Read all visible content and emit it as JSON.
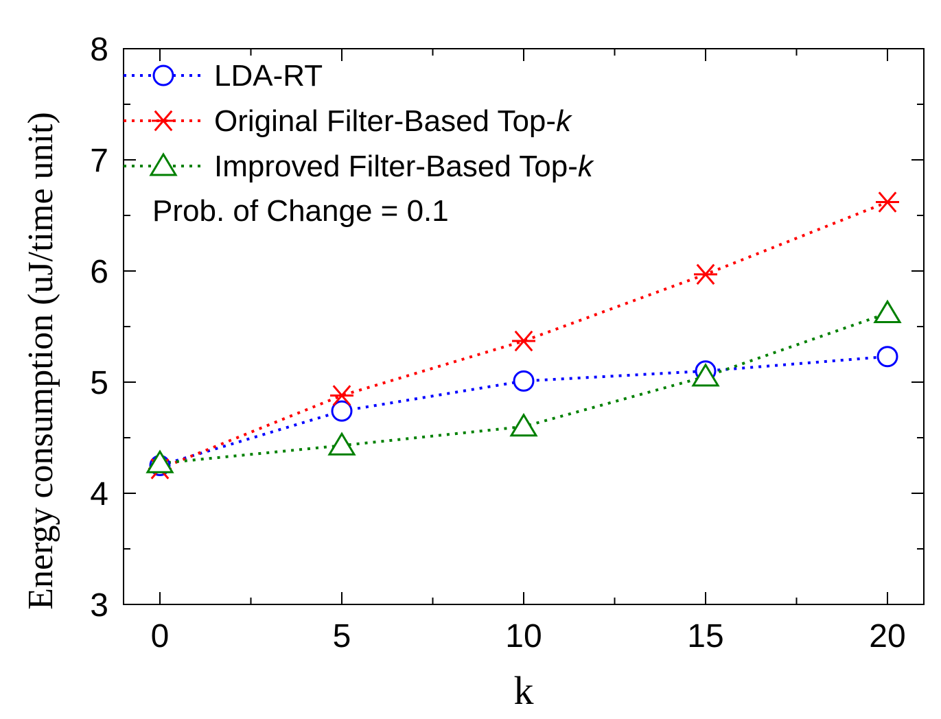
{
  "chart_data": {
    "type": "line",
    "title": "",
    "xlabel": "k",
    "ylabel": "Energy consumption (uJ/time unit)",
    "x": [
      0,
      5,
      10,
      15,
      20
    ],
    "xticks": [
      "0",
      "5",
      "10",
      "15",
      "20"
    ],
    "yticks": [
      "3",
      "4",
      "5",
      "6",
      "7",
      "8"
    ],
    "xlim": [
      -1,
      21
    ],
    "ylim": [
      3,
      8
    ],
    "grid": false,
    "legend_position": "top-left",
    "series": [
      {
        "name": "LDA-RT",
        "name_main": "LDA-RT",
        "name_italic": "",
        "marker": "circle",
        "color": "#0000ff",
        "values": [
          4.25,
          4.74,
          5.01,
          5.1,
          5.23
        ]
      },
      {
        "name": "Original Filter-Based Top-k",
        "name_main": "Original Filter-Based Top-",
        "name_italic": "k",
        "marker": "asterisk",
        "color": "#ff0000",
        "values": [
          4.22,
          4.88,
          5.37,
          5.97,
          6.62
        ]
      },
      {
        "name": "Improved Filter-Based Top-k",
        "name_main": "Improved Filter-Based Top-",
        "name_italic": "k",
        "marker": "triangle",
        "color": "#008000",
        "values": [
          4.27,
          4.43,
          4.6,
          5.05,
          5.62
        ]
      }
    ],
    "annotation": "Prob. of Change = 0.1"
  }
}
